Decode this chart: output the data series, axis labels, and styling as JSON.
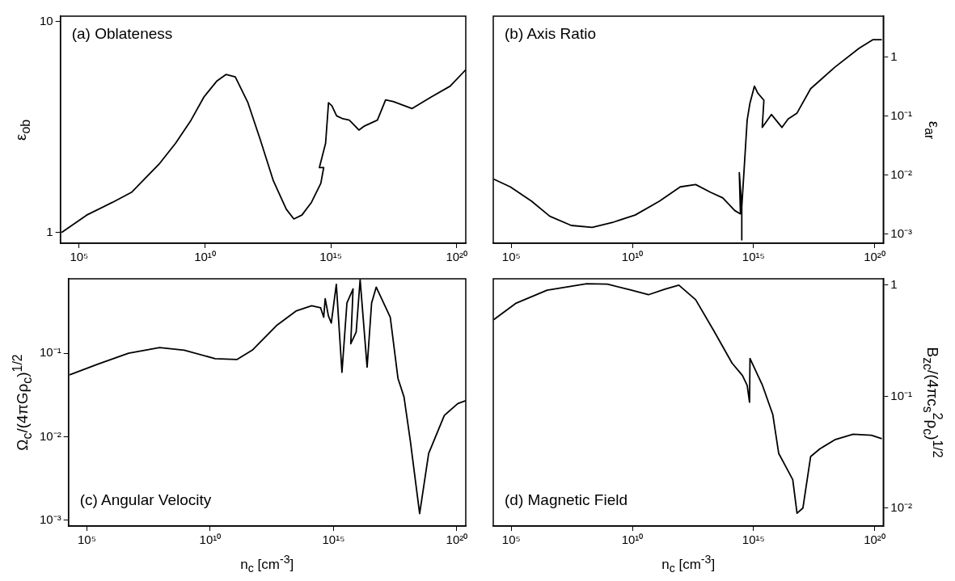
{
  "chart_data": [
    {
      "type": "line",
      "title": "(a) Oblateness",
      "ylabel": "ε$_{ob}$",
      "log": "xy",
      "xlim": [
        18000.0,
        2.3e+20
      ],
      "xticks": [
        {
          "value": 100000.0,
          "label": "10⁵"
        },
        {
          "value": 10000000000.0,
          "label": "10¹⁰"
        },
        {
          "value": 1000000000000000.0,
          "label": "10¹⁵"
        },
        {
          "value": 1e+20,
          "label": "10²⁰"
        }
      ],
      "ylim": [
        0.89,
        10.6
      ],
      "yticks": [
        {
          "value": 1,
          "label": "1"
        },
        {
          "value": 10,
          "label": "10"
        }
      ],
      "marker": "none",
      "series": [
        {
          "color": "#000000",
          "x": [
            20000.0,
            200000.0,
            2100000.0,
            12000000.0,
            160000000.0,
            680000000.0,
            2800000000.0,
            9100000000.0,
            29000000000.0,
            68000000000.0,
            160000000000.0,
            510000000000.0,
            1600000000000.0,
            5200000000000.0,
            17000000000000.0,
            34000000000000.0,
            71000000000000.0,
            170000000000000.0,
            400000000000000.0,
            520000000000000.0,
            350000000000000.0,
            620000000000000.0,
            810000000000000.0,
            1100000000000000.0,
            1700000000000000.0,
            3000000000000000.0,
            5400000000000000.0,
            8100000000000000.0,
            1.3e+16,
            2.2e+16,
            7.1e+16,
            1.5e+17,
            3e+17,
            1.7e+18,
            9.8e+18,
            5.5e+19,
            2.3e+20
          ],
          "values": [
            1.0,
            1.21,
            1.39,
            1.55,
            2.13,
            2.65,
            3.41,
            4.39,
            5.21,
            5.61,
            5.47,
            4.12,
            2.74,
            1.76,
            1.29,
            1.16,
            1.21,
            1.39,
            1.71,
            2.03,
            2.03,
            2.65,
            4.12,
            3.99,
            3.57,
            3.46,
            3.41,
            3.25,
            3.06,
            3.2,
            3.41,
            4.25,
            4.18,
            3.87,
            4.39,
            4.94,
            5.91
          ]
        }
      ]
    },
    {
      "type": "line",
      "title": "(b) Axis Ratio",
      "ylabel": "ε$_{ar}$",
      "log": "xy",
      "xlim": [
        18000.0,
        2.3e+20
      ],
      "xticks": [
        {
          "value": 100000.0,
          "label": "10⁵"
        },
        {
          "value": 10000000000.0,
          "label": "10¹⁰"
        },
        {
          "value": 1000000000000000.0,
          "label": "10¹⁵"
        },
        {
          "value": 1e+20,
          "label": "10²⁰"
        }
      ],
      "ylim": [
        0.0007,
        4.9
      ],
      "yticks": [
        {
          "value": 0.001,
          "label": "10⁻³"
        },
        {
          "value": 0.01,
          "label": "10⁻²"
        },
        {
          "value": 0.1,
          "label": "10⁻¹"
        },
        {
          "value": 1,
          "label": "1"
        }
      ],
      "marker": "none",
      "series": [
        {
          "color": "#000000",
          "x": [
            19000.0,
            91000.0,
            690000.0,
            3900000.0,
            30000000.0,
            220000000.0,
            1700000000.0,
            13000000000.0,
            130000000000.0,
            950000000000.0,
            4100000000000.0,
            17000000000000.0,
            54000000000000.0,
            170000000000000.0,
            290000000000000.0,
            260000000000000.0,
            330000000000000.0,
            330000000000000.0,
            330000000000000.0,
            550000000000000.0,
            720000000000000.0,
            1100000000000000.0,
            1500000000000000.0,
            2700000000000000.0,
            2300000000000000.0,
            5500000000000000.0,
            1.5e+16,
            2.7e+16,
            6.3e+16,
            2.3e+17,
            2.3e+18,
            2.3e+19,
            8.7e+19,
            2e+20
          ],
          "values": [
            0.0085,
            0.0063,
            0.0036,
            0.002,
            0.0014,
            0.0013,
            0.0016,
            0.0021,
            0.0036,
            0.0063,
            0.0069,
            0.0051,
            0.0041,
            0.0025,
            0.0022,
            0.011,
            0.0029,
            0.0008,
            0.0029,
            0.085,
            0.166,
            0.32,
            0.245,
            0.185,
            0.064,
            0.106,
            0.064,
            0.089,
            0.112,
            0.29,
            0.67,
            1.4,
            1.96,
            1.96
          ]
        }
      ]
    },
    {
      "type": "line",
      "title": "(c) Angular Velocity",
      "xlabel": "n$_{c}$ [cm$^{-3}$]",
      "ylabel": "Ω$_{c}$/(4πGρ$_{c}$)$^{1/2}$",
      "log": "xy",
      "xlim": [
        18000.0,
        2.3e+20
      ],
      "xticks": [
        {
          "value": 100000.0,
          "label": "10⁵"
        },
        {
          "value": 10000000000.0,
          "label": "10¹⁰"
        },
        {
          "value": 1000000000000000.0,
          "label": "10¹⁵"
        },
        {
          "value": 1e+20,
          "label": "10²⁰"
        }
      ],
      "ylim": [
        0.00085,
        0.78
      ],
      "yticks": [
        {
          "value": 0.001,
          "label": "10⁻³"
        },
        {
          "value": 0.01,
          "label": "10⁻²"
        },
        {
          "value": 0.1,
          "label": "10⁻¹"
        }
      ],
      "marker": "none",
      "series": [
        {
          "color": "#000000",
          "x": [
            20000.0,
            280000.0,
            4900000.0,
            89000000.0,
            890000000.0,
            16000000000.0,
            120000000000.0,
            510000000000.0,
            5200000000000.0,
            30000000000000.0,
            130000000000000.0,
            300000000000000.0,
            400000000000000.0,
            460000000000000.0,
            620000000000000.0,
            810000000000000.0,
            1300000000000000.0,
            2200000000000000.0,
            3500000000000000.0,
            6200000000000000.0,
            5000000000000000.0,
            8300000000000000.0,
            1.2e+16,
            2.3e+16,
            3.5e+16,
            5.4e+16,
            2e+17,
            4.1e+17,
            7.2e+17,
            1.3e+18,
            3.1e+18,
            7.2e+18,
            3.1e+19,
            1.1e+20,
            2.3e+20
          ],
          "values": [
            0.055,
            0.074,
            0.1,
            0.117,
            0.109,
            0.086,
            0.084,
            0.109,
            0.218,
            0.32,
            0.37,
            0.35,
            0.27,
            0.45,
            0.28,
            0.23,
            0.67,
            0.059,
            0.4,
            0.59,
            0.13,
            0.18,
            0.76,
            0.068,
            0.4,
            0.62,
            0.27,
            0.05,
            0.03,
            0.0089,
            0.0012,
            0.0063,
            0.018,
            0.025,
            0.027
          ]
        }
      ]
    },
    {
      "type": "line",
      "title": "(d) Magnetic Field",
      "xlabel": "n$_{c}$ [cm$^{-3}$]",
      "ylabel": "B$_{zc}$/(4πc$_{s}$$^{2}$ρ$_{c}$)$^{1/2}$",
      "log": "xy",
      "xlim": [
        18000.0,
        2.3e+20
      ],
      "xticks": [
        {
          "value": 100000.0,
          "label": "10⁵"
        },
        {
          "value": 10000000000.0,
          "label": "10¹⁰"
        },
        {
          "value": 1000000000000000.0,
          "label": "10¹⁵"
        },
        {
          "value": 1e+20,
          "label": "10²⁰"
        }
      ],
      "ylim": [
        0.0069,
        1.14
      ],
      "yticks": [
        {
          "value": 0.01,
          "label": "10⁻²"
        },
        {
          "value": 0.1,
          "label": "10⁻¹"
        },
        {
          "value": 1,
          "label": "1"
        }
      ],
      "marker": "none",
      "series": [
        {
          "color": "#000000",
          "x": [
            19000.0,
            160000.0,
            3000000.0,
            130000000.0,
            930000000.0,
            9300000000.0,
            46000000000.0,
            220000000000.0,
            830000000000.0,
            4100000000000.0,
            23000000000000.0,
            130000000000000.0,
            350000000000000.0,
            550000000000000.0,
            690000000000000.0,
            720000000000000.0,
            2300000000000000.0,
            6300000000000000.0,
            1.1e+16,
            2.3e+16,
            4.2e+16,
            6.3e+16,
            1.1e+17,
            2.3e+17,
            5.5e+17,
            2.3e+18,
            1.3e+19,
            7.4e+19,
            2e+20
          ],
          "values": [
            0.49,
            0.69,
            0.9,
            1.03,
            1.02,
            0.9,
            0.82,
            0.92,
            1.0,
            0.74,
            0.39,
            0.2,
            0.155,
            0.126,
            0.089,
            0.22,
            0.128,
            0.069,
            0.031,
            0.023,
            0.018,
            0.009,
            0.01,
            0.029,
            0.034,
            0.041,
            0.046,
            0.045,
            0.042
          ]
        }
      ]
    }
  ]
}
